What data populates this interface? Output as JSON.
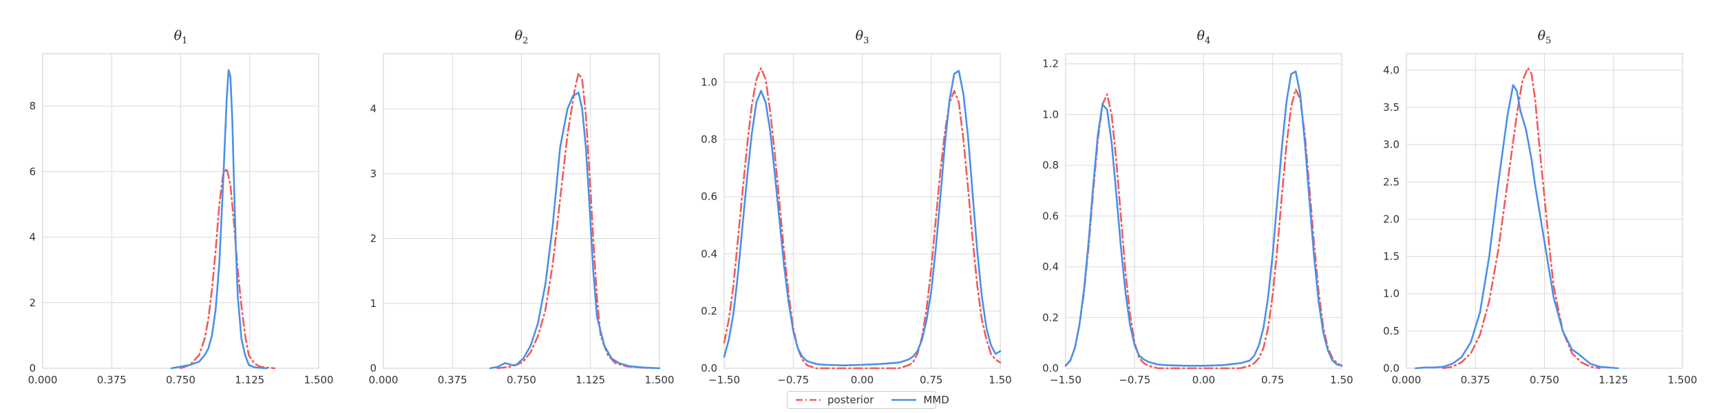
{
  "colors": {
    "posterior": "#f15a5a",
    "mmd": "#4a8fe8",
    "grid": "#d9d9d9",
    "spine": "#cccccc"
  },
  "legend": {
    "placement": "bottom-center",
    "items": [
      {
        "label": "posterior",
        "style": "dash-dot",
        "color": "#f15a5a"
      },
      {
        "label": "MMD",
        "style": "solid",
        "color": "#4a8fe8"
      }
    ]
  },
  "chart_data": [
    {
      "type": "line",
      "title": "θ",
      "title_subscript": "1",
      "xlim": [
        0.0,
        1.5
      ],
      "ylim": [
        0,
        9.6
      ],
      "xticks": [
        "0.000",
        "0.375",
        "0.750",
        "1.125",
        "1.500"
      ],
      "xtick_values": [
        0.0,
        0.375,
        0.75,
        1.125,
        1.5
      ],
      "yticks": [
        "0",
        "2",
        "4",
        "6",
        "8"
      ],
      "ytick_values": [
        0,
        2,
        4,
        6,
        8
      ],
      "series": [
        {
          "name": "posterior",
          "x": [
            0.75,
            0.8,
            0.85,
            0.88,
            0.9,
            0.92,
            0.94,
            0.96,
            0.98,
            1.0,
            1.02,
            1.04,
            1.06,
            1.08,
            1.1,
            1.12,
            1.15,
            1.18,
            1.22,
            1.26
          ],
          "y": [
            0.0,
            0.1,
            0.4,
            0.9,
            1.5,
            2.4,
            3.6,
            5.0,
            5.9,
            6.1,
            5.6,
            4.4,
            3.0,
            1.9,
            1.0,
            0.4,
            0.15,
            0.05,
            0.02,
            0.0
          ]
        },
        {
          "name": "MMD",
          "x": [
            0.7,
            0.75,
            0.8,
            0.85,
            0.88,
            0.9,
            0.92,
            0.94,
            0.96,
            0.98,
            1.0,
            1.01,
            1.02,
            1.03,
            1.04,
            1.05,
            1.06,
            1.08,
            1.1,
            1.12,
            1.15,
            1.18,
            1.22
          ],
          "y": [
            0.0,
            0.05,
            0.1,
            0.2,
            0.4,
            0.6,
            1.0,
            1.8,
            3.2,
            5.6,
            8.2,
            9.1,
            8.9,
            7.6,
            5.6,
            3.6,
            2.2,
            0.9,
            0.4,
            0.1,
            0.03,
            0.01,
            0.0
          ]
        }
      ]
    },
    {
      "type": "line",
      "title": "θ",
      "title_subscript": "2",
      "xlim": [
        0.0,
        1.5
      ],
      "ylim": [
        0,
        4.85
      ],
      "xticks": [
        "0.000",
        "0.375",
        "0.750",
        "1.125",
        "1.500"
      ],
      "xtick_values": [
        0.0,
        0.375,
        0.75,
        1.125,
        1.5
      ],
      "yticks": [
        "0",
        "1",
        "2",
        "3",
        "4"
      ],
      "ytick_values": [
        0,
        1,
        2,
        3,
        4
      ],
      "series": [
        {
          "name": "posterior",
          "x": [
            0.62,
            0.68,
            0.72,
            0.76,
            0.8,
            0.84,
            0.88,
            0.92,
            0.96,
            1.0,
            1.04,
            1.06,
            1.08,
            1.1,
            1.12,
            1.14,
            1.16,
            1.18,
            1.22,
            1.26,
            1.32,
            1.4,
            1.5
          ],
          "y": [
            0.0,
            0.02,
            0.05,
            0.1,
            0.25,
            0.5,
            0.9,
            1.6,
            2.6,
            3.6,
            4.3,
            4.55,
            4.45,
            3.9,
            3.0,
            2.0,
            1.1,
            0.5,
            0.2,
            0.08,
            0.03,
            0.01,
            0.0
          ]
        },
        {
          "name": "MMD",
          "x": [
            0.58,
            0.62,
            0.66,
            0.7,
            0.72,
            0.76,
            0.8,
            0.84,
            0.88,
            0.92,
            0.96,
            1.0,
            1.03,
            1.06,
            1.08,
            1.1,
            1.12,
            1.14,
            1.16,
            1.2,
            1.24,
            1.28,
            1.34,
            1.42,
            1.5
          ],
          "y": [
            0.0,
            0.02,
            0.08,
            0.05,
            0.05,
            0.15,
            0.35,
            0.7,
            1.3,
            2.2,
            3.4,
            4.0,
            4.2,
            4.25,
            4.0,
            3.4,
            2.5,
            1.5,
            0.8,
            0.35,
            0.15,
            0.08,
            0.03,
            0.01,
            0.0
          ]
        }
      ]
    },
    {
      "type": "line",
      "title": "θ",
      "title_subscript": "3",
      "xlim": [
        -1.5,
        1.5
      ],
      "ylim": [
        0,
        1.1
      ],
      "xticks": [
        "−1.50",
        "−0.75",
        "0.00",
        "0.75",
        "1.50"
      ],
      "xtick_values": [
        -1.5,
        -0.75,
        0.0,
        0.75,
        1.5
      ],
      "yticks": [
        "0.0",
        "0.2",
        "0.4",
        "0.6",
        "0.8",
        "1.0"
      ],
      "ytick_values": [
        0.0,
        0.2,
        0.4,
        0.6,
        0.8,
        1.0
      ],
      "series": [
        {
          "name": "posterior",
          "x": [
            -1.5,
            -1.45,
            -1.4,
            -1.35,
            -1.3,
            -1.25,
            -1.2,
            -1.15,
            -1.1,
            -1.05,
            -1.0,
            -0.95,
            -0.9,
            -0.85,
            -0.8,
            -0.75,
            -0.7,
            -0.65,
            -0.6,
            -0.5,
            -0.4,
            -0.2,
            0.0,
            0.2,
            0.4,
            0.5,
            0.55,
            0.6,
            0.65,
            0.7,
            0.75,
            0.8,
            0.85,
            0.9,
            0.95,
            1.0,
            1.05,
            1.1,
            1.15,
            1.2,
            1.25,
            1.3,
            1.35,
            1.4,
            1.45,
            1.5
          ],
          "y": [
            0.09,
            0.17,
            0.29,
            0.45,
            0.62,
            0.78,
            0.92,
            1.01,
            1.05,
            1.01,
            0.9,
            0.75,
            0.58,
            0.41,
            0.26,
            0.14,
            0.07,
            0.03,
            0.01,
            0.0,
            0.0,
            0.0,
            0.0,
            0.0,
            0.0,
            0.01,
            0.02,
            0.05,
            0.11,
            0.21,
            0.35,
            0.52,
            0.69,
            0.83,
            0.93,
            0.97,
            0.93,
            0.8,
            0.63,
            0.45,
            0.29,
            0.17,
            0.1,
            0.05,
            0.03,
            0.02
          ]
        },
        {
          "name": "MMD",
          "x": [
            -1.5,
            -1.45,
            -1.4,
            -1.35,
            -1.3,
            -1.25,
            -1.2,
            -1.15,
            -1.1,
            -1.05,
            -1.0,
            -0.95,
            -0.9,
            -0.85,
            -0.8,
            -0.75,
            -0.7,
            -0.65,
            -0.6,
            -0.5,
            -0.4,
            -0.2,
            0.0,
            0.2,
            0.4,
            0.5,
            0.55,
            0.6,
            0.65,
            0.7,
            0.75,
            0.8,
            0.85,
            0.9,
            0.95,
            1.0,
            1.05,
            1.1,
            1.15,
            1.2,
            1.25,
            1.3,
            1.35,
            1.4,
            1.45,
            1.5
          ],
          "y": [
            0.04,
            0.1,
            0.19,
            0.33,
            0.5,
            0.67,
            0.82,
            0.93,
            0.97,
            0.93,
            0.83,
            0.68,
            0.52,
            0.36,
            0.23,
            0.13,
            0.07,
            0.04,
            0.025,
            0.015,
            0.012,
            0.01,
            0.012,
            0.015,
            0.02,
            0.03,
            0.04,
            0.06,
            0.1,
            0.17,
            0.27,
            0.42,
            0.6,
            0.79,
            0.94,
            1.03,
            1.04,
            0.96,
            0.81,
            0.61,
            0.41,
            0.25,
            0.14,
            0.08,
            0.05,
            0.06
          ]
        }
      ]
    },
    {
      "type": "line",
      "title": "θ",
      "title_subscript": "4",
      "xlim": [
        -1.5,
        1.5
      ],
      "ylim": [
        0,
        1.24
      ],
      "xticks": [
        "−1.50",
        "−0.75",
        "0.00",
        "0.75",
        "1.50"
      ],
      "xtick_values": [
        -1.5,
        -0.75,
        0.0,
        0.75,
        1.5
      ],
      "yticks": [
        "0.0",
        "0.2",
        "0.4",
        "0.6",
        "0.8",
        "1.0",
        "1.2"
      ],
      "ytick_values": [
        0.0,
        0.2,
        0.4,
        0.6,
        0.8,
        1.0,
        1.2
      ],
      "series": [
        {
          "name": "posterior",
          "x": [
            -1.5,
            -1.45,
            -1.4,
            -1.35,
            -1.3,
            -1.25,
            -1.2,
            -1.15,
            -1.1,
            -1.05,
            -1.0,
            -0.95,
            -0.9,
            -0.85,
            -0.8,
            -0.75,
            -0.7,
            -0.65,
            -0.6,
            -0.5,
            -0.4,
            -0.2,
            0.0,
            0.2,
            0.4,
            0.5,
            0.55,
            0.6,
            0.65,
            0.7,
            0.75,
            0.8,
            0.85,
            0.9,
            0.95,
            1.0,
            1.05,
            1.1,
            1.15,
            1.2,
            1.25,
            1.3,
            1.35,
            1.4,
            1.45,
            1.5
          ],
          "y": [
            0.01,
            0.03,
            0.08,
            0.17,
            0.3,
            0.48,
            0.7,
            0.9,
            1.04,
            1.08,
            1.0,
            0.82,
            0.6,
            0.38,
            0.21,
            0.1,
            0.04,
            0.02,
            0.01,
            0.0,
            0.0,
            0.0,
            0.0,
            0.0,
            0.0,
            0.01,
            0.02,
            0.04,
            0.08,
            0.16,
            0.29,
            0.47,
            0.68,
            0.88,
            1.03,
            1.1,
            1.06,
            0.92,
            0.71,
            0.49,
            0.3,
            0.16,
            0.08,
            0.04,
            0.02,
            0.01
          ]
        },
        {
          "name": "MMD",
          "x": [
            -1.5,
            -1.45,
            -1.4,
            -1.35,
            -1.3,
            -1.25,
            -1.2,
            -1.15,
            -1.1,
            -1.05,
            -1.0,
            -0.95,
            -0.9,
            -0.85,
            -0.8,
            -0.75,
            -0.7,
            -0.65,
            -0.6,
            -0.5,
            -0.4,
            -0.2,
            0.0,
            0.2,
            0.4,
            0.5,
            0.55,
            0.6,
            0.65,
            0.7,
            0.75,
            0.8,
            0.85,
            0.9,
            0.95,
            1.0,
            1.05,
            1.1,
            1.15,
            1.2,
            1.25,
            1.3,
            1.35,
            1.4,
            1.45,
            1.5
          ],
          "y": [
            0.01,
            0.03,
            0.08,
            0.17,
            0.31,
            0.5,
            0.72,
            0.92,
            1.04,
            1.02,
            0.89,
            0.69,
            0.48,
            0.3,
            0.17,
            0.09,
            0.05,
            0.035,
            0.025,
            0.015,
            0.012,
            0.01,
            0.01,
            0.012,
            0.02,
            0.03,
            0.05,
            0.09,
            0.16,
            0.28,
            0.45,
            0.66,
            0.87,
            1.05,
            1.16,
            1.17,
            1.08,
            0.89,
            0.66,
            0.44,
            0.26,
            0.14,
            0.07,
            0.03,
            0.015,
            0.01
          ]
        }
      ]
    },
    {
      "type": "line",
      "title": "θ",
      "title_subscript": "5",
      "xlim": [
        0.0,
        1.5
      ],
      "ylim": [
        0,
        4.22
      ],
      "xticks": [
        "0.000",
        "0.375",
        "0.750",
        "1.125",
        "1.500"
      ],
      "xtick_values": [
        0.0,
        0.375,
        0.75,
        1.125,
        1.5
      ],
      "yticks": [
        "0.0",
        "0.5",
        "1.0",
        "1.5",
        "2.0",
        "2.5",
        "3.0",
        "3.5",
        "4.0"
      ],
      "ytick_values": [
        0.0,
        0.5,
        1.0,
        1.5,
        2.0,
        2.5,
        3.0,
        3.5,
        4.0
      ],
      "series": [
        {
          "name": "posterior",
          "x": [
            0.2,
            0.25,
            0.3,
            0.35,
            0.4,
            0.45,
            0.5,
            0.55,
            0.6,
            0.63,
            0.66,
            0.68,
            0.7,
            0.72,
            0.75,
            0.78,
            0.8,
            0.85,
            0.9,
            0.95,
            1.0,
            1.05
          ],
          "y": [
            0.0,
            0.02,
            0.08,
            0.2,
            0.45,
            0.9,
            1.6,
            2.5,
            3.4,
            3.85,
            4.03,
            3.95,
            3.6,
            3.05,
            2.3,
            1.55,
            1.1,
            0.5,
            0.2,
            0.08,
            0.02,
            0.0
          ]
        },
        {
          "name": "MMD",
          "x": [
            0.05,
            0.1,
            0.15,
            0.2,
            0.25,
            0.3,
            0.35,
            0.4,
            0.45,
            0.5,
            0.55,
            0.58,
            0.6,
            0.62,
            0.65,
            0.68,
            0.7,
            0.75,
            0.8,
            0.85,
            0.9,
            0.93,
            0.96,
            1.0,
            1.05,
            1.1,
            1.15
          ],
          "y": [
            0.0,
            0.01,
            0.01,
            0.02,
            0.06,
            0.15,
            0.35,
            0.75,
            1.5,
            2.5,
            3.4,
            3.8,
            3.72,
            3.45,
            3.2,
            2.8,
            2.45,
            1.7,
            0.95,
            0.5,
            0.25,
            0.2,
            0.14,
            0.06,
            0.02,
            0.01,
            0.0
          ]
        }
      ]
    }
  ]
}
